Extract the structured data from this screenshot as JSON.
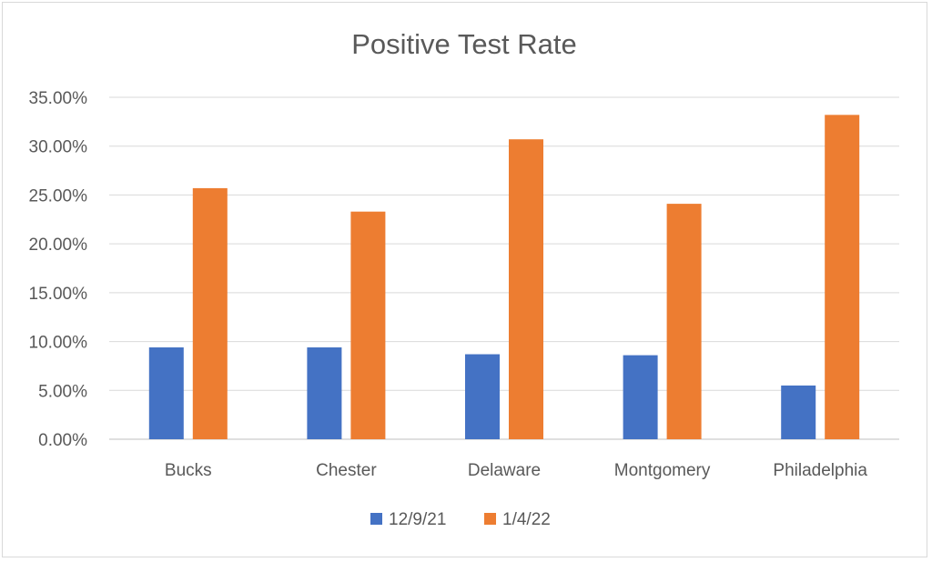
{
  "chart_data": {
    "type": "bar",
    "title": "Positive Test Rate",
    "xlabel": "",
    "ylabel": "",
    "categories": [
      "Bucks",
      "Chester",
      "Delaware",
      "Montgomery",
      "Philadelphia"
    ],
    "series": [
      {
        "name": "12/9/21",
        "color": "#4472c4",
        "values": [
          0.094,
          0.094,
          0.087,
          0.086,
          0.055
        ]
      },
      {
        "name": "1/4/22",
        "color": "#ed7d31",
        "values": [
          0.257,
          0.233,
          0.307,
          0.241,
          0.332
        ]
      }
    ],
    "ylim": [
      0,
      0.35
    ],
    "yticks": [
      {
        "value": 0.0,
        "label": "0.00%"
      },
      {
        "value": 0.05,
        "label": "5.00%"
      },
      {
        "value": 0.1,
        "label": "10.00%"
      },
      {
        "value": 0.15,
        "label": "15.00%"
      },
      {
        "value": 0.2,
        "label": "20.00%"
      },
      {
        "value": 0.25,
        "label": "25.00%"
      },
      {
        "value": 0.3,
        "label": "30.00%"
      },
      {
        "value": 0.35,
        "label": "35.00%"
      }
    ],
    "grid": true,
    "legend_position": "bottom"
  }
}
